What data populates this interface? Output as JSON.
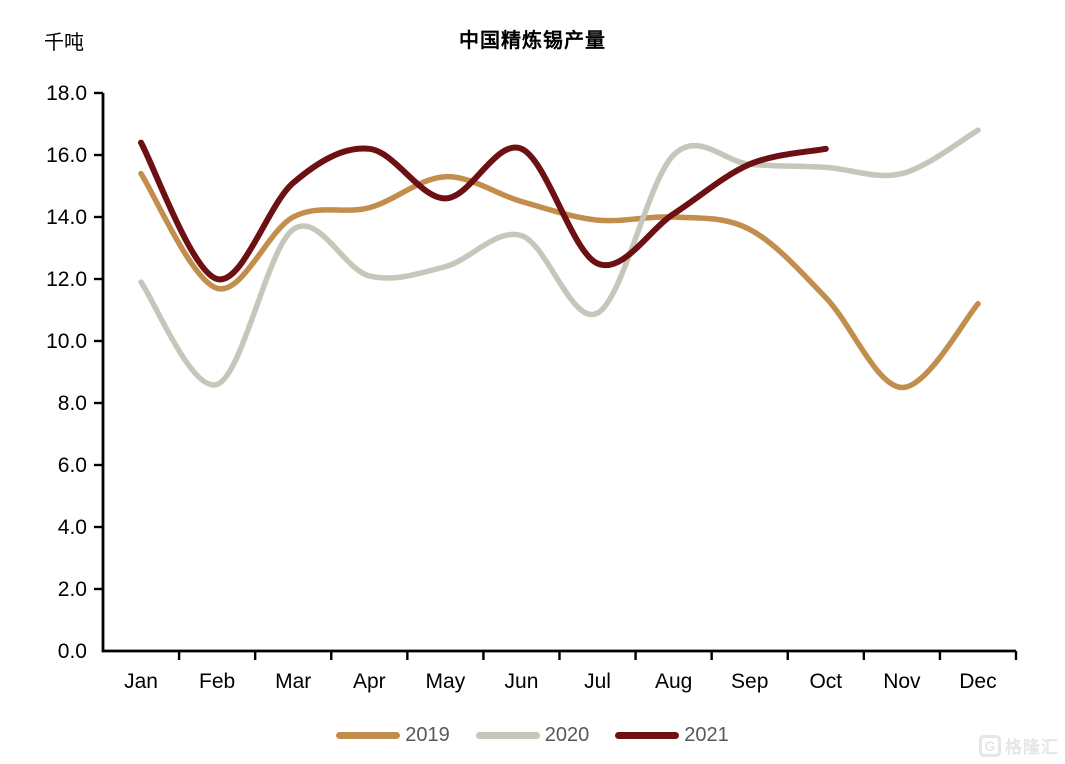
{
  "title": "中国精炼锡产量",
  "unit_label": "千吨",
  "watermark": {
    "logo": "G",
    "text": "格隆汇"
  },
  "chart_data": {
    "type": "line",
    "title": "中国精炼锡产量",
    "ylabel": "千吨",
    "xlabel": "",
    "categories": [
      "Jan",
      "Feb",
      "Mar",
      "Apr",
      "May",
      "Jun",
      "Jul",
      "Aug",
      "Sep",
      "Oct",
      "Nov",
      "Dec"
    ],
    "ylim": [
      0,
      18
    ],
    "ytick_step": 2,
    "ytick_labels": [
      "0.0",
      "2.0",
      "4.0",
      "6.0",
      "8.0",
      "10.0",
      "12.0",
      "14.0",
      "16.0",
      "18.0"
    ],
    "grid": false,
    "legend_position": "bottom",
    "smoothed_lines": true,
    "axis_color": "#000000",
    "series": [
      {
        "name": "2019",
        "color": "#C28E4D",
        "values": [
          15.4,
          11.7,
          14.0,
          14.3,
          15.3,
          14.5,
          13.9,
          14.0,
          13.6,
          11.4,
          8.5,
          11.2
        ]
      },
      {
        "name": "2020",
        "color": "#C6C7BA",
        "values": [
          11.9,
          8.6,
          13.6,
          12.1,
          12.4,
          13.4,
          10.9,
          16.0,
          15.7,
          15.6,
          15.4,
          16.8
        ]
      },
      {
        "name": "2021",
        "color": "#6D1013",
        "values": [
          16.4,
          12.0,
          15.1,
          16.2,
          14.6,
          16.2,
          12.5,
          14.1,
          15.7,
          16.2,
          null,
          null
        ]
      }
    ]
  }
}
